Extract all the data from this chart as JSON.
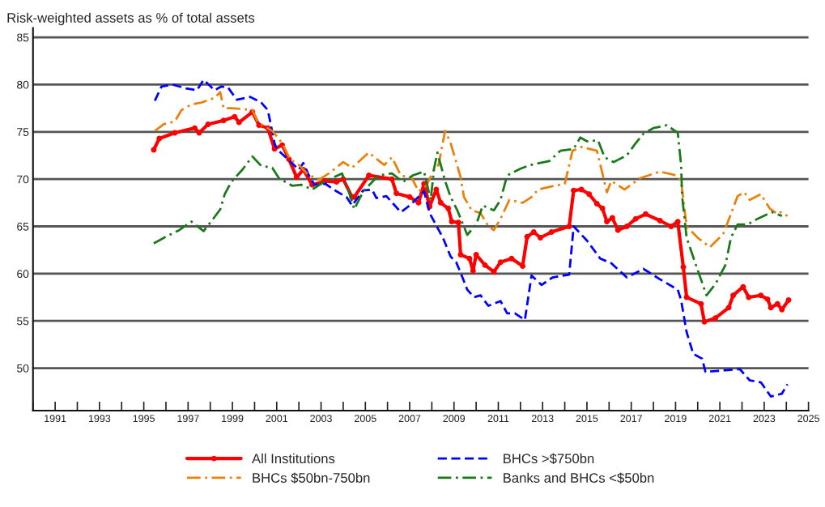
{
  "chart_data": {
    "type": "line",
    "title": "Risk-weighted assets as % of total assets",
    "xlim": [
      1990,
      2025
    ],
    "ylim": [
      45.5,
      86
    ],
    "xticks": [
      {
        "value": 1990,
        "label": null
      },
      1991,
      {
        "value": 1992,
        "label": null
      },
      1993,
      {
        "value": 1994,
        "label": null
      },
      1995,
      {
        "value": 1996,
        "label": null
      },
      1997,
      {
        "value": 1998,
        "label": null
      },
      1999,
      {
        "value": 2000,
        "label": null
      },
      2001,
      {
        "value": 2002,
        "label": null
      },
      2003,
      {
        "value": 2004,
        "label": null
      },
      2005,
      {
        "value": 2006,
        "label": null
      },
      2007,
      {
        "value": 2008,
        "label": null
      },
      2009,
      {
        "value": 2010,
        "label": null
      },
      2011,
      {
        "value": 2012,
        "label": null
      },
      2013,
      {
        "value": 2014,
        "label": null
      },
      2015,
      {
        "value": 2016,
        "label": null
      },
      2017,
      {
        "value": 2018,
        "label": null
      },
      2019,
      {
        "value": 2020,
        "label": null
      },
      2021,
      {
        "value": 2022,
        "label": null
      },
      2023,
      {
        "value": 2024,
        "label": null
      },
      2025
    ],
    "yticks": [
      50,
      55,
      60,
      65,
      70,
      75,
      80,
      85
    ],
    "grid": "y",
    "legend": "bottom",
    "series": [
      {
        "name": "All Institutions",
        "color": "#ff0000",
        "marker": "circle",
        "line_style": "solid",
        "x": [
          1995.45,
          1995.7,
          1996.4,
          1997.3,
          1997.5,
          1997.9,
          1998.6,
          1999.1,
          1999.3,
          1999.9,
          2000.2,
          2000.6,
          2000.9,
          2001.25,
          2001.55,
          2001.9,
          2002.2,
          2002.6,
          2003.2,
          2003.7,
          2004.0,
          2004.4,
          2004.5,
          2005.16,
          2006.2,
          2006.4,
          2007.0,
          2007.4,
          2007.65,
          2007.9,
          2008.2,
          2008.4,
          2008.74,
          2008.9,
          2009.2,
          2009.3,
          2009.7,
          2009.86,
          2010.0,
          2010.4,
          2010.8,
          2011.1,
          2011.6,
          2012.1,
          2012.3,
          2012.6,
          2012.9,
          2013.4,
          2014.2,
          2014.4,
          2014.75,
          2015.1,
          2015.45,
          2015.7,
          2015.9,
          2016.15,
          2016.4,
          2016.8,
          2017.2,
          2017.65,
          2018.3,
          2018.8,
          2019.1,
          2019.35,
          2019.5,
          2020.15,
          2020.3,
          2020.8,
          2021.4,
          2021.6,
          2022.05,
          2022.3,
          2022.85,
          2023.15,
          2023.3,
          2023.6,
          2023.8,
          2024.1
        ],
        "values": [
          73.1,
          74.3,
          74.9,
          75.4,
          74.9,
          75.8,
          76.2,
          76.6,
          76.0,
          77.1,
          75.7,
          75.4,
          73.2,
          73.6,
          72.1,
          70.2,
          71.0,
          69.4,
          69.8,
          69.7,
          70.0,
          68.1,
          68.1,
          70.4,
          70.0,
          68.5,
          68.1,
          67.5,
          69.5,
          67.1,
          68.9,
          67.5,
          66.9,
          65.5,
          65.4,
          62.0,
          61.6,
          60.3,
          62.0,
          60.9,
          60.2,
          61.2,
          61.6,
          60.8,
          63.9,
          64.4,
          63.8,
          64.4,
          65.0,
          68.8,
          68.9,
          68.4,
          67.4,
          66.9,
          65.5,
          65.9,
          64.6,
          65.0,
          65.8,
          66.3,
          65.6,
          65.0,
          65.5,
          60.7,
          57.5,
          56.8,
          54.9,
          55.3,
          56.4,
          57.7,
          58.6,
          57.5,
          57.7,
          57.3,
          56.4,
          56.8,
          56.2,
          57.2
        ]
      },
      {
        "name": "BHCs >$750bn",
        "color": "#0000ff",
        "marker": "none",
        "line_style": "dashed",
        "x": [
          1995.5,
          1995.8,
          1996.3,
          1996.9,
          1997.4,
          1997.7,
          1998.2,
          1998.5,
          1998.8,
          1999.2,
          1999.8,
          2000.3,
          2000.6,
          2000.9,
          2001.0,
          2001.5,
          2002.0,
          2002.2,
          2002.45,
          2002.7,
          2003.2,
          2003.7,
          2004.15,
          2004.4,
          2004.9,
          2005.3,
          2005.5,
          2005.95,
          2006.6,
          2007.0,
          2007.65,
          2007.9,
          2008.5,
          2008.85,
          2009.1,
          2009.3,
          2009.6,
          2009.9,
          2010.2,
          2010.55,
          2011.1,
          2011.4,
          2011.75,
          2012.2,
          2012.5,
          2012.95,
          2013.45,
          2014.2,
          2014.4,
          2015.0,
          2015.6,
          2016.1,
          2016.8,
          2017.55,
          2018.3,
          2019.1,
          2019.25,
          2019.5,
          2019.8,
          2020.2,
          2020.35,
          2021.9,
          2022.35,
          2022.85,
          2023.3,
          2023.8,
          2024.05
        ],
        "values": [
          78.3,
          79.8,
          80.0,
          79.6,
          79.4,
          80.5,
          79.4,
          79.8,
          79.7,
          78.4,
          78.7,
          78.1,
          77.3,
          73.8,
          73.2,
          72.1,
          71.0,
          71.7,
          70.4,
          69.4,
          69.5,
          68.7,
          68.1,
          67.2,
          68.8,
          68.9,
          68.0,
          68.2,
          66.5,
          67.2,
          68.7,
          66.4,
          63.8,
          61.8,
          61.2,
          60.1,
          58.3,
          57.5,
          57.7,
          56.6,
          57.1,
          55.8,
          55.8,
          55.1,
          59.8,
          58.8,
          59.6,
          59.9,
          65.0,
          63.5,
          61.6,
          61.1,
          59.6,
          60.5,
          59.4,
          58.3,
          57.2,
          53.8,
          51.5,
          51.0,
          49.6,
          49.9,
          48.7,
          48.5,
          47.0,
          47.3,
          48.3
        ]
      },
      {
        "name": "BHCs $50bn-750bn",
        "color": "#e8820c",
        "marker": "none",
        "line_style": "dashdot",
        "x": [
          1995.5,
          1995.9,
          1996.4,
          1996.7,
          1997.15,
          1997.6,
          1998.2,
          1998.45,
          1998.6,
          1998.95,
          1999.5,
          1999.9,
          2000.15,
          2000.8,
          2001.25,
          2001.6,
          2002.0,
          2002.45,
          2002.95,
          2003.35,
          2004.0,
          2004.4,
          2005.15,
          2005.85,
          2006.2,
          2006.6,
          2007.1,
          2007.4,
          2007.75,
          2008.1,
          2008.3,
          2008.6,
          2008.85,
          2009.1,
          2009.3,
          2009.45,
          2009.8,
          2010.2,
          2010.55,
          2010.8,
          2011.1,
          2011.5,
          2012.1,
          2012.5,
          2012.8,
          2013.55,
          2014.0,
          2014.35,
          2014.75,
          2015.45,
          2015.7,
          2015.9,
          2016.1,
          2016.7,
          2017.4,
          2018.3,
          2019.0,
          2019.25,
          2019.5,
          2020.0,
          2020.55,
          2021.15,
          2021.5,
          2021.8,
          2022.1,
          2022.35,
          2022.85,
          2023.25,
          2023.6,
          2023.75,
          2024.05
        ],
        "values": [
          75.1,
          75.8,
          76.1,
          77.3,
          77.9,
          78.1,
          78.6,
          79.2,
          77.5,
          77.5,
          77.4,
          77.3,
          76.0,
          75.1,
          73.8,
          72.1,
          71.5,
          70.4,
          70.0,
          70.6,
          71.8,
          71.2,
          72.8,
          71.5,
          72.3,
          70.4,
          70.1,
          68.7,
          69.3,
          71.0,
          71.5,
          75.1,
          73.8,
          71.8,
          70.2,
          68.1,
          66.7,
          66.4,
          65.0,
          64.6,
          65.8,
          67.8,
          67.5,
          68.1,
          68.9,
          69.3,
          69.5,
          73.0,
          73.4,
          73.0,
          70.6,
          68.6,
          69.8,
          68.9,
          70.1,
          70.8,
          70.4,
          69.8,
          65.0,
          63.8,
          62.8,
          64.2,
          66.3,
          68.2,
          68.6,
          67.8,
          68.4,
          66.9,
          66.3,
          66.5,
          66.1
        ]
      },
      {
        "name": "Banks and BHCs <$50bn",
        "color": "#1a7a1a",
        "marker": "none",
        "line_style": "dashdot",
        "x": [
          1995.45,
          1996.0,
          1996.6,
          1997.15,
          1997.7,
          1998.1,
          1998.45,
          1998.65,
          1998.95,
          1999.45,
          1999.9,
          2000.3,
          2000.8,
          2001.1,
          2001.7,
          2002.1,
          2002.6,
          2003.2,
          2003.95,
          2004.25,
          2004.5,
          2004.9,
          2005.6,
          2006.2,
          2006.7,
          2007.15,
          2007.65,
          2007.95,
          2008.1,
          2008.25,
          2008.6,
          2008.85,
          2009.15,
          2009.6,
          2010.0,
          2010.3,
          2010.8,
          2011.1,
          2011.4,
          2012.0,
          2012.45,
          2013.3,
          2013.8,
          2014.4,
          2014.7,
          2015.0,
          2015.5,
          2015.8,
          2016.2,
          2016.8,
          2017.2,
          2017.55,
          2018.0,
          2018.6,
          2019.1,
          2019.25,
          2019.3,
          2019.5,
          2019.95,
          2020.4,
          2020.8,
          2021.25,
          2021.5,
          2021.8,
          2022.25,
          2022.7,
          2023.35,
          2023.8
        ],
        "values": [
          63.2,
          63.9,
          64.6,
          65.5,
          64.5,
          65.7,
          66.8,
          68.4,
          69.7,
          71.0,
          72.4,
          71.4,
          71.2,
          70.1,
          69.3,
          69.4,
          68.9,
          69.8,
          70.6,
          68.7,
          66.8,
          68.7,
          70.4,
          70.6,
          69.7,
          70.4,
          70.8,
          67.8,
          71.1,
          72.8,
          69.8,
          68.1,
          66.7,
          64.1,
          65.2,
          67.2,
          66.7,
          67.8,
          70.4,
          71.1,
          71.5,
          71.9,
          73.0,
          73.2,
          74.4,
          74.0,
          74.1,
          72.3,
          71.8,
          72.5,
          73.8,
          74.8,
          75.4,
          75.7,
          74.9,
          71.5,
          68.1,
          63.8,
          60.7,
          57.7,
          58.9,
          60.9,
          63.8,
          65.2,
          65.2,
          65.8,
          66.5,
          66.1
        ]
      }
    ]
  }
}
